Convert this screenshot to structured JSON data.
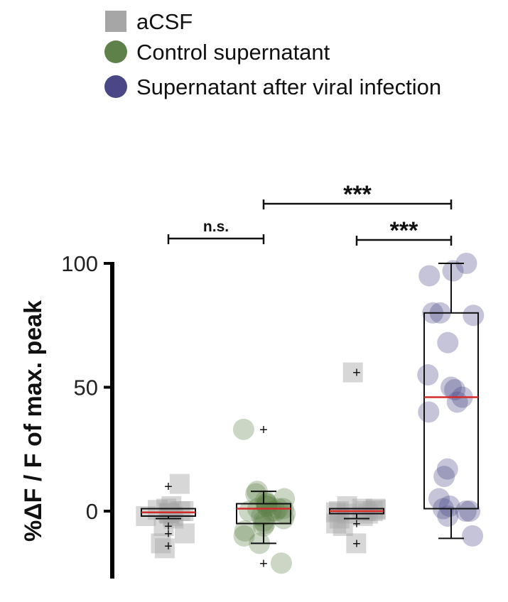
{
  "chart_data": {
    "type": "box",
    "ylabel": "%ΔF / F of max. peak",
    "yticks": [
      0,
      50,
      100
    ],
    "ylim": [
      -27,
      100
    ],
    "legend_position": "top-left",
    "legend": [
      {
        "label": "aCSF",
        "marker": "square",
        "color": "#a6a6a6"
      },
      {
        "label": "Control supernatant",
        "marker": "circle",
        "color": "#5e8049"
      },
      {
        "label": "Supernatant after viral infection",
        "marker": "circle",
        "color": "#4a4786"
      }
    ],
    "groups": [
      {
        "series": "aCSF",
        "marker": "square",
        "color": "#a6a6a6",
        "box": {
          "q1": -2,
          "median": -0.5,
          "q3": 1,
          "whisker_low": -3,
          "whisker_high": 1
        },
        "outliers": [
          10,
          -6,
          -9,
          -14
        ],
        "points": [
          11,
          2,
          1,
          0.5,
          0,
          0,
          -0.5,
          -1,
          -1,
          -2,
          -2,
          -3,
          -6,
          -9,
          -13,
          -15
        ]
      },
      {
        "series": "Control supernatant",
        "marker": "circle",
        "color": "#5e8049",
        "box": {
          "q1": -5,
          "median": 1,
          "q3": 3,
          "whisker_low": -13,
          "whisker_high": 8
        },
        "outliers": [
          33,
          -21
        ],
        "points": [
          33,
          8,
          7,
          5,
          4,
          3,
          3,
          2,
          2,
          1,
          1,
          1,
          0,
          0,
          0,
          -1,
          -2,
          -3,
          -4,
          -5,
          -6,
          -8,
          -10,
          -13,
          -21
        ]
      },
      {
        "series": "aCSF",
        "marker": "square",
        "color": "#a6a6a6",
        "box": {
          "q1": -1,
          "median": 0,
          "q3": 1,
          "whisker_low": -3,
          "whisker_high": 1
        },
        "outliers": [
          56,
          -5,
          -13
        ],
        "points": [
          56,
          2,
          1,
          1,
          0.5,
          0,
          0,
          0,
          -0.5,
          -1,
          -1,
          -2,
          -3,
          -5,
          -6,
          -13
        ]
      },
      {
        "series": "Supernatant after viral infection",
        "marker": "circle",
        "color": "#4a4786",
        "box": {
          "q1": 1,
          "median": 46,
          "q3": 80,
          "whisker_low": -11,
          "whisker_high": 100
        },
        "outliers": [],
        "points": [
          100,
          97,
          95,
          80,
          80,
          79,
          68,
          55,
          50,
          49,
          46,
          44,
          40,
          17,
          14,
          5,
          2,
          1,
          0,
          0,
          -2,
          -10
        ]
      }
    ],
    "significance": [
      {
        "from": 1,
        "to": 2,
        "label": "n.s."
      },
      {
        "from": 2,
        "to": 4,
        "label": "***"
      },
      {
        "from": 3,
        "to": 4,
        "label": "***"
      }
    ]
  }
}
